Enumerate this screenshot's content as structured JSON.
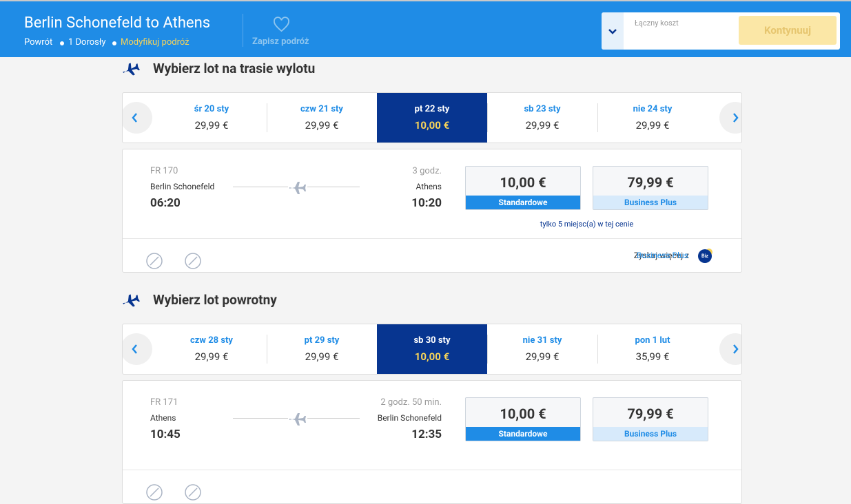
{
  "header": {
    "title": "Berlin Schonefeld to Athens",
    "trip_type": "Powrót",
    "passengers": "1 Dorosły",
    "modify": "Modyfikuj podróż",
    "save": "Zapisz podróż",
    "total_label": "Łączny koszt",
    "continue": "Kontynuuj"
  },
  "sections": [
    {
      "heading": "Wybierz lot na trasie wylotu",
      "selected": 2,
      "dates": [
        {
          "day": "śr 20 sty",
          "price": "29,99 €"
        },
        {
          "day": "czw 21 sty",
          "price": "29,99 €"
        },
        {
          "day": "pt 22 sty",
          "price": "10,00 €"
        },
        {
          "day": "sb 23 sty",
          "price": "29,99 €"
        },
        {
          "day": "nie 24 sty",
          "price": "29,99 €"
        }
      ],
      "flight": {
        "number": "FR 170",
        "from": "Berlin Schonefeld",
        "depart": "06:20",
        "duration": "3 godz.",
        "to": "Athens",
        "arrive": "10:20",
        "fares": [
          {
            "price": "10,00 €",
            "name": "Standardowe"
          },
          {
            "price": "79,99 €",
            "name": "Business Plus"
          }
        ],
        "note": "tylko 5 miejsc(a) w tej cenie",
        "promo": "Zyskaj więcej z",
        "promo_link": "Business Plus",
        "badge": "Biz"
      }
    },
    {
      "heading": "Wybierz lot powrotny",
      "selected": 2,
      "dates": [
        {
          "day": "czw 28 sty",
          "price": "29,99 €"
        },
        {
          "day": "pt 29 sty",
          "price": "29,99 €"
        },
        {
          "day": "sb 30 sty",
          "price": "10,00 €"
        },
        {
          "day": "nie 31 sty",
          "price": "29,99 €"
        },
        {
          "day": "pon 1 lut",
          "price": "35,99 €"
        }
      ],
      "flight": {
        "number": "FR 171",
        "from": "Athens",
        "depart": "10:45",
        "duration": "2 godz. 50 min.",
        "to": "Berlin Schonefeld",
        "arrive": "12:35",
        "fares": [
          {
            "price": "10,00 €",
            "name": "Standardowe"
          },
          {
            "price": "79,99 €",
            "name": "Business Plus"
          }
        ]
      }
    }
  ]
}
